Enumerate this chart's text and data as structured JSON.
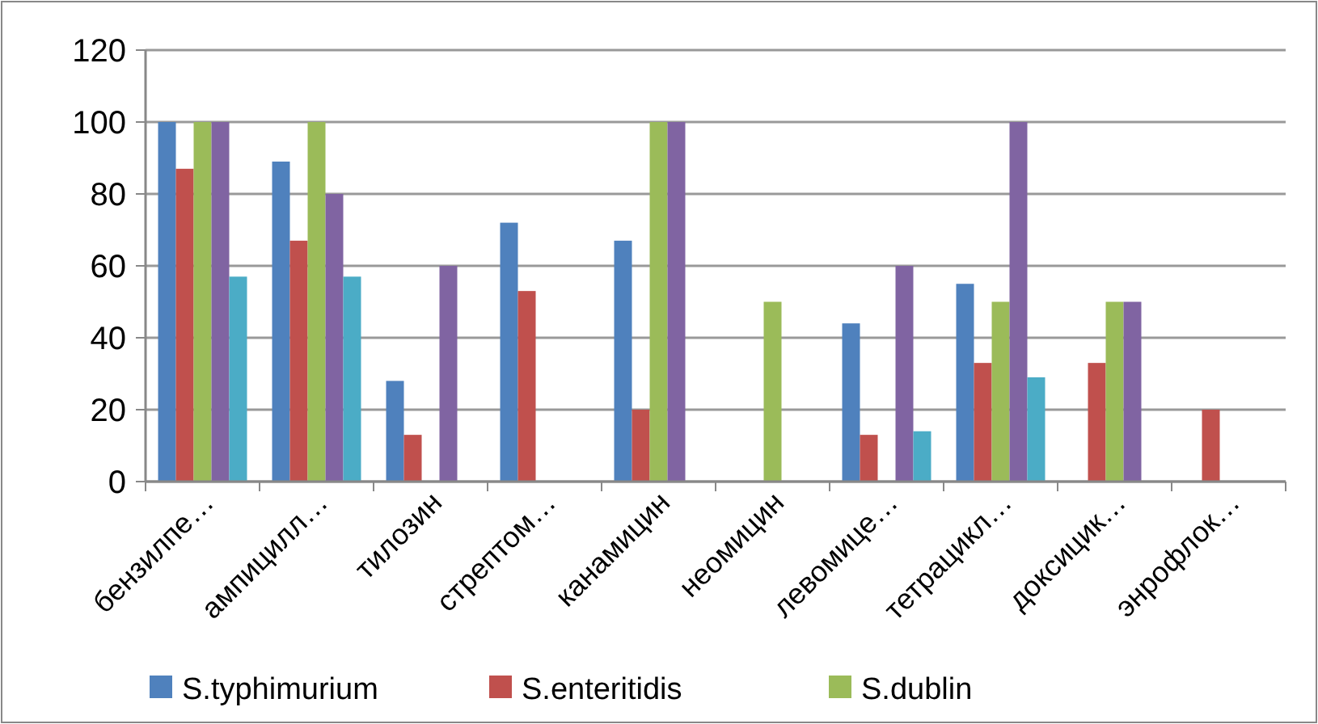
{
  "chart_data": {
    "type": "bar",
    "categories": [
      "бензилпе…",
      "ампицилл…",
      "тилозин",
      "стрептом…",
      "канамицин",
      "неомицин",
      "левомице…",
      "тетрацикл…",
      "доксицик…",
      "энрофлок…"
    ],
    "series": [
      {
        "name": "S.typhimurium",
        "color": "#4f81bd",
        "values": [
          100,
          89,
          28,
          72,
          67,
          0,
          44,
          55,
          0,
          0
        ]
      },
      {
        "name": "S.enteritidis",
        "color": "#c0504d",
        "values": [
          87,
          67,
          13,
          53,
          20,
          0,
          13,
          33,
          33,
          20
        ]
      },
      {
        "name": "S.dublin",
        "color": "#9bbb59",
        "values": [
          100,
          100,
          0,
          0,
          100,
          50,
          0,
          50,
          50,
          0
        ]
      },
      {
        "color": "#8064a2",
        "values": [
          100,
          80,
          60,
          0,
          100,
          0,
          60,
          100,
          50,
          0
        ]
      },
      {
        "color": "#4bacc6",
        "values": [
          57,
          57,
          0,
          0,
          0,
          0,
          14,
          29,
          0,
          0
        ]
      }
    ],
    "ylim": [
      0,
      120
    ],
    "yticks": [
      0,
      20,
      40,
      60,
      80,
      100,
      120
    ],
    "grid": "y",
    "legend": "bottom"
  }
}
